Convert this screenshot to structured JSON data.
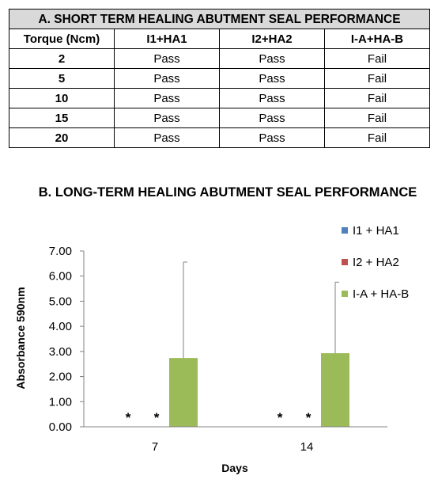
{
  "table_a": {
    "title": "A. SHORT TERM HEALING ABUTMENT SEAL PERFORMANCE",
    "headers": [
      "Torque (Ncm)",
      "I1+HA1",
      "I2+HA2",
      "I-A+HA-B"
    ],
    "rows": [
      [
        "2",
        "Pass",
        "Pass",
        "Fail"
      ],
      [
        "5",
        "Pass",
        "Pass",
        "Fail"
      ],
      [
        "10",
        "Pass",
        "Pass",
        "Fail"
      ],
      [
        "15",
        "Pass",
        "Pass",
        "Fail"
      ],
      [
        "20",
        "Pass",
        "Pass",
        "Fail"
      ]
    ]
  },
  "chart_data": {
    "type": "bar",
    "title": "B. LONG-TERM HEALING ABUTMENT SEAL PERFORMANCE",
    "xlabel": "Days",
    "ylabel": "Absorbance 590nm",
    "categories": [
      "7",
      "14"
    ],
    "ylim": [
      0,
      7
    ],
    "yticks": [
      "0.00",
      "1.00",
      "2.00",
      "3.00",
      "4.00",
      "5.00",
      "6.00",
      "7.00"
    ],
    "grid": false,
    "legend_position": "top-right",
    "series": [
      {
        "name": "I1 + HA1",
        "color": "#4f81bd",
        "values": [
          0,
          0
        ],
        "error": [
          0,
          0
        ],
        "marker": [
          "*",
          "*"
        ]
      },
      {
        "name": "I2 + HA2",
        "color": "#c0504d",
        "values": [
          0,
          0
        ],
        "error": [
          0,
          0
        ],
        "marker": [
          "*",
          "*"
        ]
      },
      {
        "name": "I-A + HA-B",
        "color": "#9bbb59",
        "values": [
          2.74,
          2.93
        ],
        "error": [
          3.82,
          2.83
        ],
        "marker": [
          "",
          ""
        ]
      }
    ]
  }
}
